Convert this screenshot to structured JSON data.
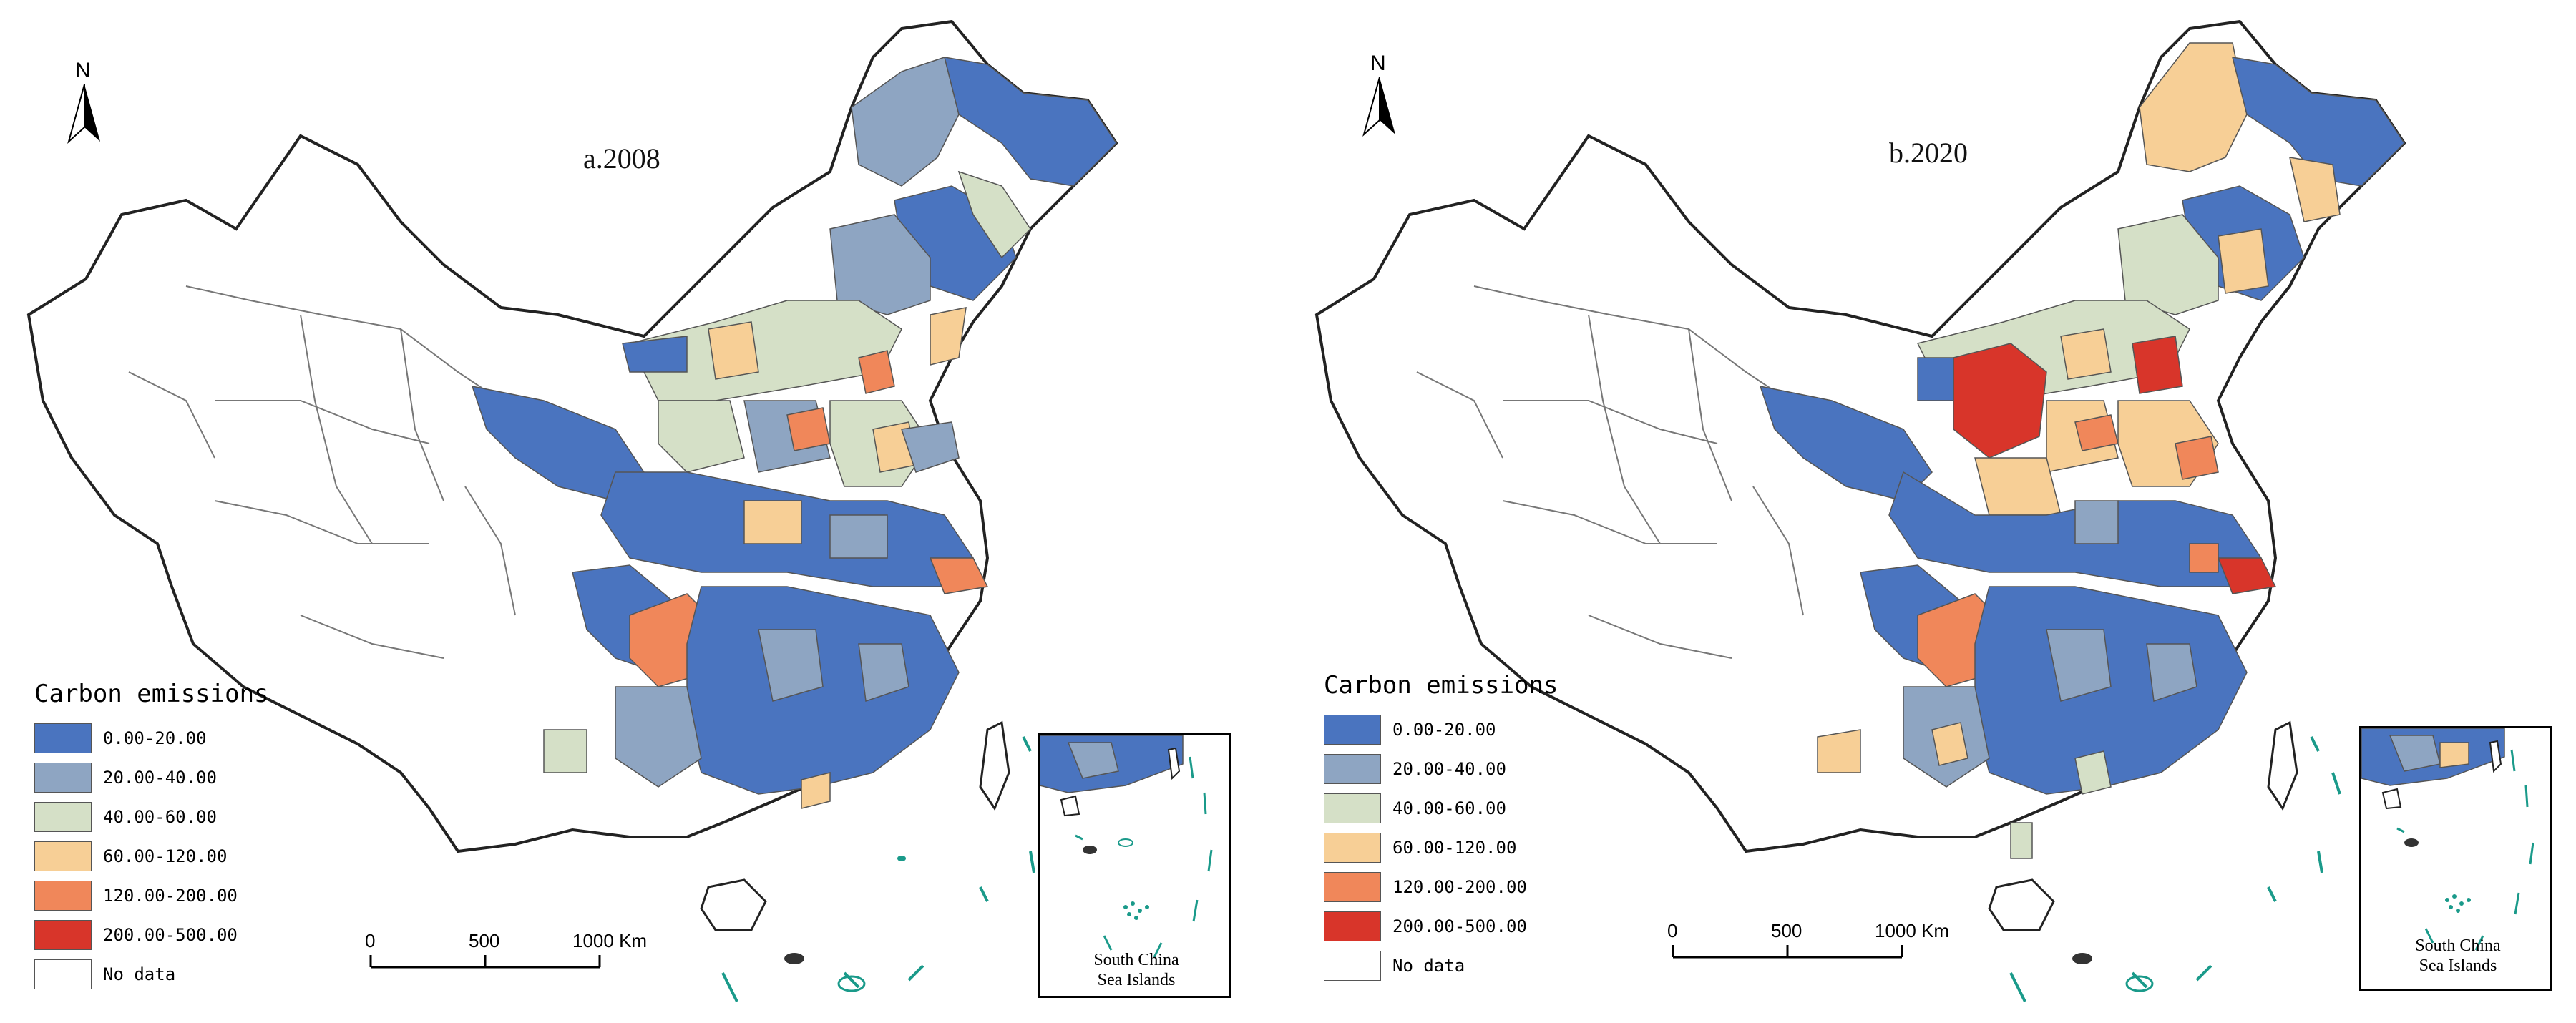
{
  "panels": [
    {
      "title": "a.2008",
      "north_label": "N",
      "inset_label_line1": "South China",
      "inset_label_line2": "Sea Islands"
    },
    {
      "title": "b.2020",
      "north_label": "N",
      "inset_label_line1": "South China",
      "inset_label_line2": "Sea Islands"
    }
  ],
  "legend": {
    "title": "Carbon emissions",
    "classes": [
      {
        "label": "0.00-20.00",
        "color": "#4a74bf"
      },
      {
        "label": "20.00-40.00",
        "color": "#8ea5c2"
      },
      {
        "label": "40.00-60.00",
        "color": "#d5e0c7"
      },
      {
        "label": "60.00-120.00",
        "color": "#f7cf96"
      },
      {
        "label": "120.00-200.00",
        "color": "#f0875a"
      },
      {
        "label": "200.00-500.00",
        "color": "#d8352a"
      },
      {
        "label": "No data",
        "color": "#ffffff"
      }
    ]
  },
  "scalebar": {
    "ticks": [
      "0",
      "500",
      "1000 Km"
    ]
  },
  "colors": {
    "boundary": "#222222",
    "inner_boundary": "#777777",
    "no_data": "#ffffff",
    "sea_islands": "#1a9a8a"
  }
}
